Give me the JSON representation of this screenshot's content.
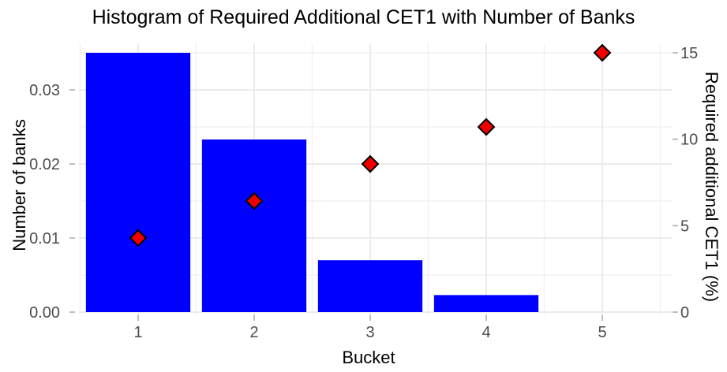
{
  "chart_data": {
    "type": "combo",
    "title": "Histogram of Required Additional CET1 with Number of Banks",
    "xlabel": "Bucket",
    "x_ticks": [
      1,
      2,
      3,
      4,
      5
    ],
    "left_axis": {
      "label": "Number of banks",
      "range": [
        0,
        0.035
      ],
      "ticks": [
        {
          "label": "0.00",
          "value": 0
        },
        {
          "label": "0.01",
          "value": 0.01
        },
        {
          "label": "0.02",
          "value": 0.02
        },
        {
          "label": "0.03",
          "value": 0.03
        }
      ],
      "minor_ticks": [
        0.005,
        0.015,
        0.025,
        0.035
      ]
    },
    "right_axis": {
      "label": "Required additional CET1 (%)",
      "range": [
        0,
        15
      ],
      "ticks": [
        {
          "label": "0",
          "value": 0
        },
        {
          "label": "5",
          "value": 5
        },
        {
          "label": "10",
          "value": 10
        },
        {
          "label": "15",
          "value": 15
        }
      ]
    },
    "series": [
      {
        "name": "Number of banks",
        "type": "bar",
        "axis": "left",
        "color": "#0000ff",
        "bar_width_ratio": 0.9,
        "x": [
          1,
          2,
          3,
          4,
          5
        ],
        "values": [
          0.035,
          0.0233,
          0.007,
          0.0023,
          0
        ]
      },
      {
        "name": "Required additional CET1 (%)",
        "type": "scatter",
        "marker": "diamond",
        "axis": "right",
        "color": "#ee0000",
        "stroke": "#000000",
        "x": [
          1,
          2,
          3,
          4,
          5
        ],
        "values": [
          4.29,
          6.43,
          8.57,
          10.71,
          15
        ]
      }
    ],
    "grid": {
      "show": true,
      "major_color": "#ebebeb",
      "minor_color": "#f2f2f2",
      "background": "#ffffff"
    },
    "tick_mark_color": "#bebebe",
    "tick_label_color": "#4d4d4d",
    "title_color": "#000000",
    "legend": "none"
  }
}
